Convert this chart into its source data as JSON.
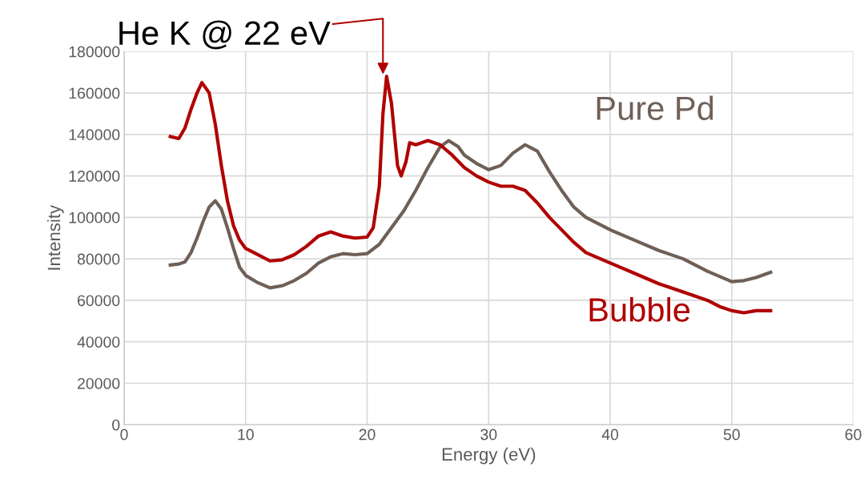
{
  "chart_data": {
    "type": "line",
    "xlabel": "Energy (eV)",
    "ylabel": "Intensity",
    "xlim": [
      0,
      60
    ],
    "xticks": [
      0,
      10,
      20,
      30,
      40,
      50,
      60
    ],
    "ylim": [
      0,
      180000
    ],
    "yticks": [
      0,
      20000,
      40000,
      60000,
      80000,
      100000,
      120000,
      140000,
      160000,
      180000
    ],
    "grid": true,
    "legend": false,
    "marker": "none",
    "line_style": "solid",
    "annotations": [
      {
        "text": "He K @ 22 eV",
        "x": 21.3,
        "y": 169000
      }
    ],
    "series": [
      {
        "name": "Pure Pd",
        "color": "#6f6057",
        "x": [
          3.8,
          4.5,
          5.0,
          5.5,
          6.0,
          6.5,
          7.0,
          7.5,
          8.0,
          8.5,
          9.0,
          9.5,
          10,
          11,
          12,
          13,
          14,
          15,
          16,
          17,
          18,
          19,
          20,
          21,
          22,
          23,
          24,
          25,
          26,
          26.7,
          27.5,
          28,
          29,
          30,
          31,
          32,
          33,
          34,
          35,
          36,
          37,
          38,
          40,
          42,
          44,
          46,
          48,
          50,
          51,
          52,
          53.2
        ],
        "values": [
          77000,
          77500,
          78500,
          83000,
          90000,
          98000,
          105000,
          108000,
          104000,
          95000,
          85000,
          76000,
          72000,
          68500,
          66000,
          67000,
          69500,
          73000,
          78000,
          81000,
          82500,
          82000,
          82500,
          87000,
          95000,
          103000,
          113000,
          124000,
          134000,
          137000,
          134000,
          130000,
          126000,
          123000,
          125000,
          131000,
          135000,
          132000,
          122000,
          113000,
          105000,
          100000,
          94000,
          89000,
          84000,
          80000,
          74000,
          69000,
          69500,
          71000,
          73500
        ]
      },
      {
        "name": "Bubble",
        "color": "#b00000",
        "x": [
          3.8,
          4.5,
          5.0,
          5.5,
          6.0,
          6.4,
          7.0,
          7.5,
          8.0,
          8.5,
          9.0,
          9.5,
          10,
          11,
          12,
          13,
          14,
          15,
          16,
          17,
          18,
          19,
          20,
          20.5,
          21.0,
          21.3,
          21.6,
          22.0,
          22.5,
          22.8,
          23.2,
          23.5,
          24,
          25,
          26,
          27,
          28,
          29,
          30,
          31,
          32,
          33,
          34,
          35,
          36,
          37,
          38,
          40,
          42,
          44,
          46,
          48,
          49,
          50,
          51,
          52,
          53.2
        ],
        "values": [
          139000,
          138000,
          143000,
          152000,
          160000,
          165000,
          160000,
          145000,
          125000,
          108000,
          96000,
          89000,
          85000,
          82000,
          79000,
          79500,
          82000,
          86000,
          91000,
          93000,
          91000,
          90000,
          90500,
          95000,
          115000,
          150000,
          168000,
          155000,
          125000,
          120000,
          127000,
          136000,
          135000,
          137000,
          135000,
          130000,
          124000,
          120000,
          117000,
          115000,
          115000,
          113000,
          107000,
          100000,
          94000,
          88000,
          83000,
          78000,
          73000,
          68000,
          64000,
          60000,
          57000,
          55000,
          54000,
          55000,
          55000
        ]
      }
    ]
  }
}
